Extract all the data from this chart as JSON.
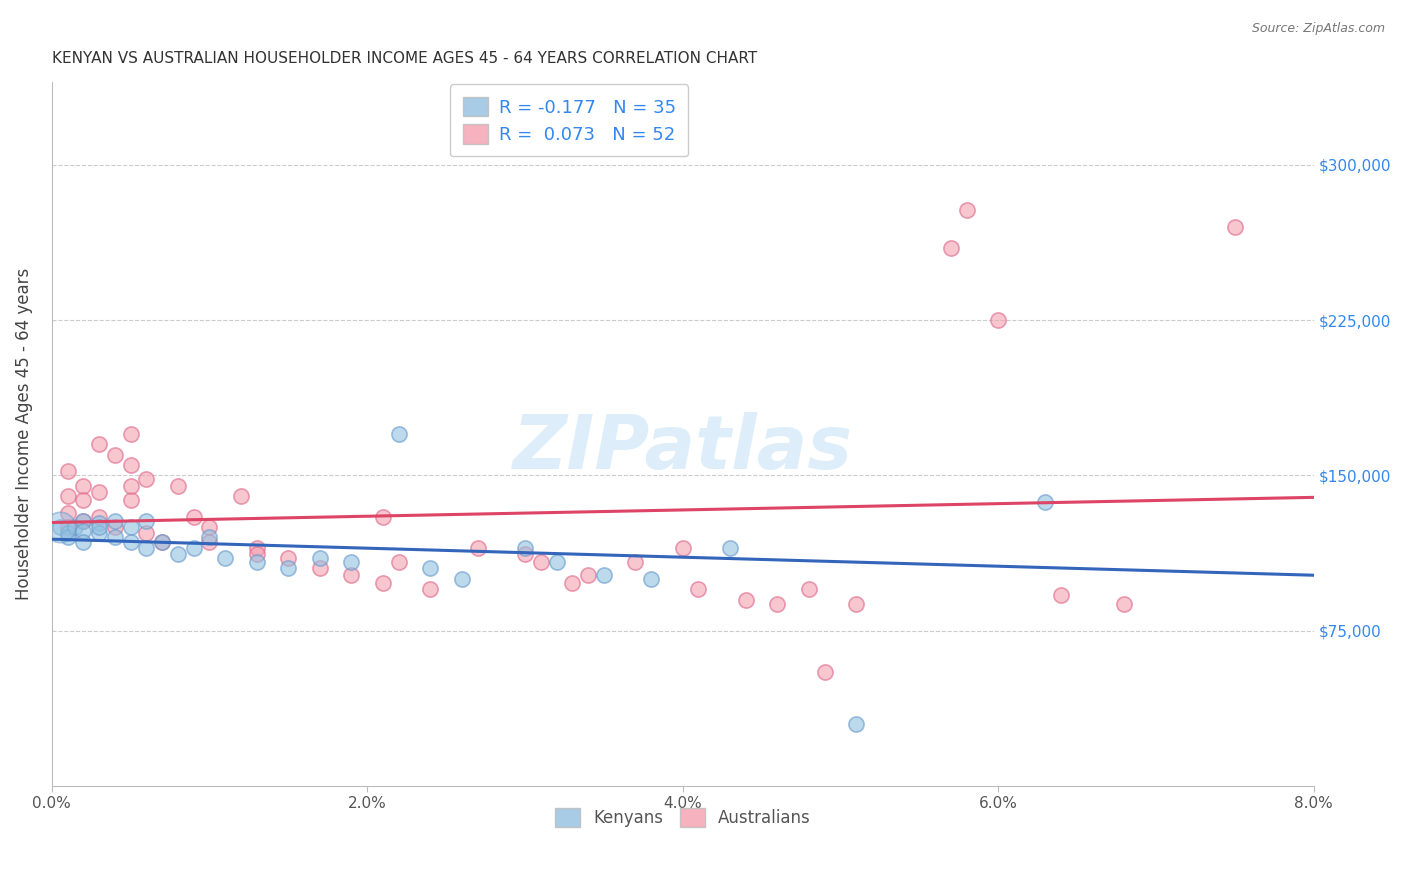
{
  "title": "KENYAN VS AUSTRALIAN HOUSEHOLDER INCOME AGES 45 - 64 YEARS CORRELATION CHART",
  "source": "Source: ZipAtlas.com",
  "ylabel": "Householder Income Ages 45 - 64 years",
  "xlim": [
    0.0,
    0.08
  ],
  "ylim": [
    0,
    340000
  ],
  "ytick_labels": [
    "$75,000",
    "$150,000",
    "$225,000",
    "$300,000"
  ],
  "ytick_values": [
    75000,
    150000,
    225000,
    300000
  ],
  "legend_entries": [
    {
      "label": "R = -0.177   N = 35"
    },
    {
      "label": "R =  0.073   N = 52"
    }
  ],
  "watermark": "ZIPatlas",
  "kenyan_color": "#92c0e0",
  "kenyan_edge_color": "#6699cc",
  "australian_color": "#f4a0b0",
  "australian_edge_color": "#dd6688",
  "kenyan_line_color": "#3366bb",
  "australian_line_color": "#dd4466",
  "kenyan_r": -0.177,
  "australian_r": 0.073,
  "kenyan_points": [
    [
      0.0005,
      125000
    ],
    [
      0.001,
      122000
    ],
    [
      0.001,
      120000
    ],
    [
      0.0015,
      125000
    ],
    [
      0.002,
      128000
    ],
    [
      0.002,
      123000
    ],
    [
      0.002,
      118000
    ],
    [
      0.003,
      127000
    ],
    [
      0.003,
      122000
    ],
    [
      0.003,
      125000
    ],
    [
      0.004,
      128000
    ],
    [
      0.004,
      120000
    ],
    [
      0.005,
      125000
    ],
    [
      0.005,
      118000
    ],
    [
      0.006,
      128000
    ],
    [
      0.006,
      115000
    ],
    [
      0.007,
      118000
    ],
    [
      0.008,
      112000
    ],
    [
      0.009,
      115000
    ],
    [
      0.01,
      120000
    ],
    [
      0.011,
      110000
    ],
    [
      0.013,
      108000
    ],
    [
      0.015,
      105000
    ],
    [
      0.017,
      110000
    ],
    [
      0.019,
      108000
    ],
    [
      0.022,
      170000
    ],
    [
      0.024,
      105000
    ],
    [
      0.026,
      100000
    ],
    [
      0.03,
      115000
    ],
    [
      0.032,
      108000
    ],
    [
      0.035,
      102000
    ],
    [
      0.038,
      100000
    ],
    [
      0.043,
      115000
    ],
    [
      0.051,
      30000
    ],
    [
      0.063,
      137000
    ]
  ],
  "australian_points": [
    [
      0.001,
      132000
    ],
    [
      0.001,
      140000
    ],
    [
      0.001,
      152000
    ],
    [
      0.001,
      125000
    ],
    [
      0.002,
      128000
    ],
    [
      0.002,
      145000
    ],
    [
      0.002,
      138000
    ],
    [
      0.003,
      142000
    ],
    [
      0.003,
      165000
    ],
    [
      0.003,
      130000
    ],
    [
      0.004,
      125000
    ],
    [
      0.004,
      160000
    ],
    [
      0.005,
      138000
    ],
    [
      0.005,
      170000
    ],
    [
      0.005,
      155000
    ],
    [
      0.005,
      145000
    ],
    [
      0.006,
      122000
    ],
    [
      0.006,
      148000
    ],
    [
      0.007,
      118000
    ],
    [
      0.008,
      145000
    ],
    [
      0.009,
      130000
    ],
    [
      0.01,
      125000
    ],
    [
      0.01,
      118000
    ],
    [
      0.012,
      140000
    ],
    [
      0.013,
      115000
    ],
    [
      0.013,
      112000
    ],
    [
      0.015,
      110000
    ],
    [
      0.017,
      105000
    ],
    [
      0.019,
      102000
    ],
    [
      0.021,
      130000
    ],
    [
      0.021,
      98000
    ],
    [
      0.022,
      108000
    ],
    [
      0.024,
      95000
    ],
    [
      0.027,
      115000
    ],
    [
      0.03,
      112000
    ],
    [
      0.031,
      108000
    ],
    [
      0.033,
      98000
    ],
    [
      0.034,
      102000
    ],
    [
      0.037,
      108000
    ],
    [
      0.04,
      115000
    ],
    [
      0.041,
      95000
    ],
    [
      0.044,
      90000
    ],
    [
      0.046,
      88000
    ],
    [
      0.048,
      95000
    ],
    [
      0.049,
      55000
    ],
    [
      0.051,
      88000
    ],
    [
      0.057,
      260000
    ],
    [
      0.058,
      278000
    ],
    [
      0.06,
      225000
    ],
    [
      0.064,
      92000
    ],
    [
      0.068,
      88000
    ],
    [
      0.075,
      270000
    ]
  ],
  "background_color": "#ffffff",
  "grid_color": "#cccccc",
  "title_color": "#333333",
  "axis_label_color": "#444444",
  "right_ytick_color": "#3388ee",
  "marker_size": 120
}
